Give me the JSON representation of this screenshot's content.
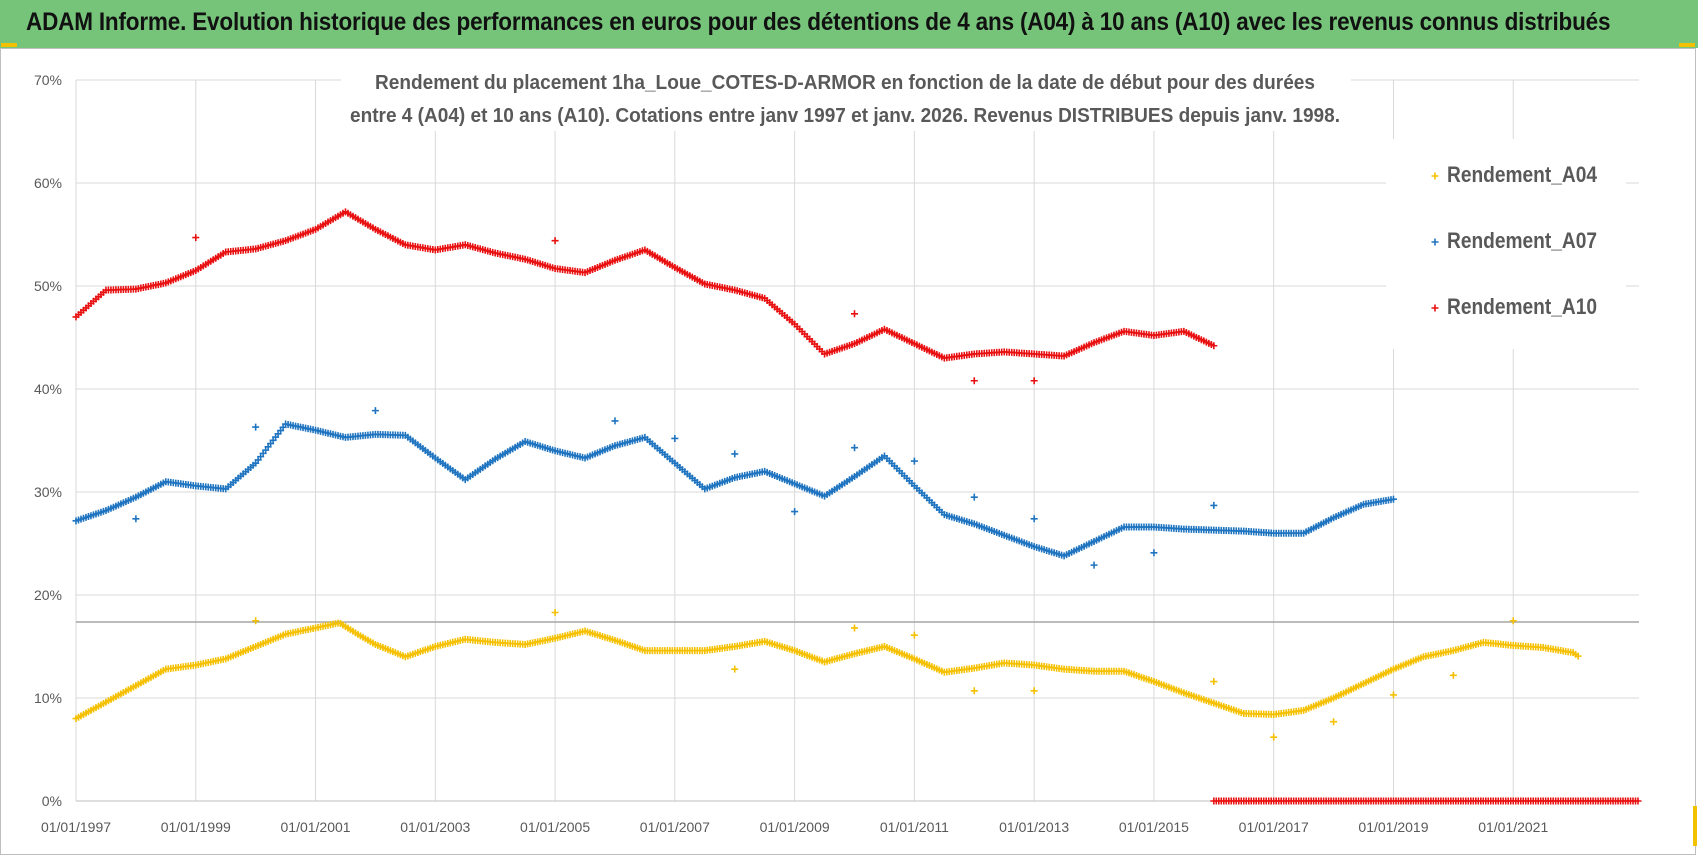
{
  "banner": {
    "title": "ADAM Informe. Evolution historique des performances en euros pour des détentions de 4 ans (A04) à 10 ans (A10) avec les revenus connus distribués"
  },
  "chart_data": {
    "type": "scatter",
    "title_lines": [
      "Rendement du placement 1ha_Loue_COTES-D-ARMOR en fonction de la date de début pour des durées",
      "entre 4 (A04) et 10 ans (A10).  Cotations entre janv 1997 et janv. 2026. Revenus DISTRIBUES depuis janv. 1998."
    ],
    "xlabel": "",
    "ylabel": "",
    "xlim": [
      1997.0,
      2023.1
    ],
    "ylim": [
      0,
      70
    ],
    "y_ticks": [
      0,
      10,
      20,
      30,
      40,
      50,
      60,
      70
    ],
    "y_tick_labels": [
      "0%",
      "10%",
      "20%",
      "30%",
      "40%",
      "50%",
      "60%",
      "70%"
    ],
    "x_ticks": [
      1997,
      1999,
      2001,
      2003,
      2005,
      2007,
      2009,
      2011,
      2013,
      2015,
      2017,
      2019,
      2021
    ],
    "x_tick_labels": [
      "01/01/1997",
      "01/01/1999",
      "01/01/2001",
      "01/01/2003",
      "01/01/2005",
      "01/01/2007",
      "01/01/2009",
      "01/01/2011",
      "01/01/2013",
      "01/01/2015",
      "01/01/2017",
      "01/01/2019",
      "01/01/2021"
    ],
    "grid": true,
    "legend_position": "right",
    "series": [
      {
        "name": "Rendement_A04",
        "color": "#f5c000",
        "points": [
          [
            1997.0,
            8.0
          ],
          [
            1997.5,
            9.6
          ],
          [
            1998.0,
            11.2
          ],
          [
            1998.5,
            12.8
          ],
          [
            1999.0,
            13.2
          ],
          [
            1999.5,
            13.8
          ],
          [
            2000.0,
            15.0
          ],
          [
            2000.5,
            16.2
          ],
          [
            2001.0,
            16.8
          ],
          [
            2001.4,
            17.3
          ],
          [
            2001.7,
            16.2
          ],
          [
            2002.0,
            15.2
          ],
          [
            2002.5,
            14.0
          ],
          [
            2003.0,
            15.0
          ],
          [
            2003.5,
            15.7
          ],
          [
            2004.0,
            15.4
          ],
          [
            2004.5,
            15.2
          ],
          [
            2005.0,
            15.8
          ],
          [
            2005.5,
            16.5
          ],
          [
            2006.0,
            15.6
          ],
          [
            2006.5,
            14.6
          ],
          [
            2007.0,
            14.6
          ],
          [
            2007.5,
            14.6
          ],
          [
            2008.0,
            15.0
          ],
          [
            2008.5,
            15.5
          ],
          [
            2009.0,
            14.6
          ],
          [
            2009.5,
            13.5
          ],
          [
            2010.0,
            14.3
          ],
          [
            2010.5,
            15.0
          ],
          [
            2011.0,
            13.8
          ],
          [
            2011.5,
            12.5
          ],
          [
            2012.0,
            12.9
          ],
          [
            2012.5,
            13.4
          ],
          [
            2013.0,
            13.2
          ],
          [
            2013.5,
            12.8
          ],
          [
            2014.0,
            12.6
          ],
          [
            2014.5,
            12.6
          ],
          [
            2015.0,
            11.6
          ],
          [
            2015.5,
            10.5
          ],
          [
            2016.0,
            9.5
          ],
          [
            2016.5,
            8.5
          ],
          [
            2017.0,
            8.4
          ],
          [
            2017.5,
            8.8
          ],
          [
            2018.0,
            10.0
          ],
          [
            2018.5,
            11.4
          ],
          [
            2019.0,
            12.8
          ],
          [
            2019.5,
            14.0
          ],
          [
            2020.0,
            14.6
          ],
          [
            2020.5,
            15.4
          ],
          [
            2021.0,
            15.1
          ],
          [
            2021.5,
            14.9
          ],
          [
            2022.0,
            14.4
          ],
          [
            2022.1,
            14.0
          ]
        ],
        "outliers": [
          [
            2000.0,
            17.5
          ],
          [
            2005.0,
            18.3
          ],
          [
            2008.0,
            12.8
          ],
          [
            2010.0,
            16.8
          ],
          [
            2011.0,
            16.1
          ],
          [
            2012.0,
            10.7
          ],
          [
            2013.0,
            10.7
          ],
          [
            2016.0,
            11.6
          ],
          [
            2017.0,
            6.2
          ],
          [
            2018.0,
            7.7
          ],
          [
            2019.0,
            10.3
          ],
          [
            2020.0,
            12.2
          ],
          [
            2021.0,
            17.5
          ]
        ]
      },
      {
        "name": "Rendement_A07",
        "color": "#1f74c0",
        "points": [
          [
            1997.0,
            27.2
          ],
          [
            1997.5,
            28.2
          ],
          [
            1998.0,
            29.5
          ],
          [
            1998.5,
            31.0
          ],
          [
            1999.0,
            30.6
          ],
          [
            1999.5,
            30.3
          ],
          [
            2000.0,
            32.8
          ],
          [
            2000.5,
            36.6
          ],
          [
            2001.0,
            36.0
          ],
          [
            2001.5,
            35.3
          ],
          [
            2002.0,
            35.6
          ],
          [
            2002.5,
            35.5
          ],
          [
            2003.0,
            33.3
          ],
          [
            2003.5,
            31.2
          ],
          [
            2004.0,
            33.2
          ],
          [
            2004.5,
            34.9
          ],
          [
            2005.0,
            34.0
          ],
          [
            2005.5,
            33.3
          ],
          [
            2006.0,
            34.5
          ],
          [
            2006.5,
            35.3
          ],
          [
            2007.0,
            32.8
          ],
          [
            2007.5,
            30.3
          ],
          [
            2008.0,
            31.4
          ],
          [
            2008.5,
            32.0
          ],
          [
            2009.0,
            30.8
          ],
          [
            2009.5,
            29.6
          ],
          [
            2010.0,
            31.5
          ],
          [
            2010.5,
            33.5
          ],
          [
            2011.0,
            30.6
          ],
          [
            2011.5,
            27.8
          ],
          [
            2012.0,
            26.9
          ],
          [
            2012.5,
            25.8
          ],
          [
            2013.0,
            24.7
          ],
          [
            2013.5,
            23.8
          ],
          [
            2014.0,
            25.2
          ],
          [
            2014.5,
            26.6
          ],
          [
            2015.0,
            26.6
          ],
          [
            2015.5,
            26.4
          ],
          [
            2016.0,
            26.3
          ],
          [
            2016.5,
            26.2
          ],
          [
            2017.0,
            26.0
          ],
          [
            2017.5,
            26.0
          ],
          [
            2018.0,
            27.5
          ],
          [
            2018.5,
            28.8
          ],
          [
            2019.0,
            29.3
          ]
        ],
        "outliers": [
          [
            1998.0,
            27.4
          ],
          [
            2000.0,
            36.3
          ],
          [
            2002.0,
            37.9
          ],
          [
            2006.0,
            36.9
          ],
          [
            2007.0,
            35.2
          ],
          [
            2008.0,
            33.7
          ],
          [
            2009.0,
            28.1
          ],
          [
            2010.0,
            34.3
          ],
          [
            2011.0,
            33.0
          ],
          [
            2012.0,
            29.5
          ],
          [
            2013.0,
            27.4
          ],
          [
            2014.0,
            22.9
          ],
          [
            2015.0,
            24.1
          ],
          [
            2016.0,
            28.7
          ]
        ]
      },
      {
        "name": "Rendement_A10",
        "color": "#e81010",
        "points": [
          [
            1997.0,
            47.0
          ],
          [
            1997.5,
            49.6
          ],
          [
            1998.0,
            49.7
          ],
          [
            1998.5,
            50.3
          ],
          [
            1999.0,
            51.5
          ],
          [
            1999.5,
            53.3
          ],
          [
            2000.0,
            53.6
          ],
          [
            2000.5,
            54.4
          ],
          [
            2001.0,
            55.5
          ],
          [
            2001.5,
            57.2
          ],
          [
            2002.0,
            55.5
          ],
          [
            2002.5,
            54.0
          ],
          [
            2003.0,
            53.5
          ],
          [
            2003.5,
            54.0
          ],
          [
            2004.0,
            53.2
          ],
          [
            2004.5,
            52.6
          ],
          [
            2005.0,
            51.7
          ],
          [
            2005.5,
            51.3
          ],
          [
            2006.0,
            52.5
          ],
          [
            2006.5,
            53.5
          ],
          [
            2007.0,
            51.8
          ],
          [
            2007.5,
            50.2
          ],
          [
            2008.0,
            49.6
          ],
          [
            2008.5,
            48.8
          ],
          [
            2009.0,
            46.3
          ],
          [
            2009.5,
            43.4
          ],
          [
            2010.0,
            44.4
          ],
          [
            2010.5,
            45.8
          ],
          [
            2011.0,
            44.4
          ],
          [
            2011.5,
            43.0
          ],
          [
            2012.0,
            43.4
          ],
          [
            2012.5,
            43.6
          ],
          [
            2013.0,
            43.4
          ],
          [
            2013.5,
            43.2
          ],
          [
            2014.0,
            44.5
          ],
          [
            2014.5,
            45.6
          ],
          [
            2015.0,
            45.2
          ],
          [
            2015.5,
            45.6
          ],
          [
            2016.0,
            44.2
          ]
        ],
        "outliers": [
          [
            1999.0,
            54.7
          ],
          [
            2005.0,
            54.4
          ],
          [
            2010.0,
            47.3
          ],
          [
            2012.0,
            40.8
          ],
          [
            2013.0,
            40.8
          ]
        ],
        "zero_segment": [
          2016.0,
          2023.1
        ]
      }
    ]
  }
}
